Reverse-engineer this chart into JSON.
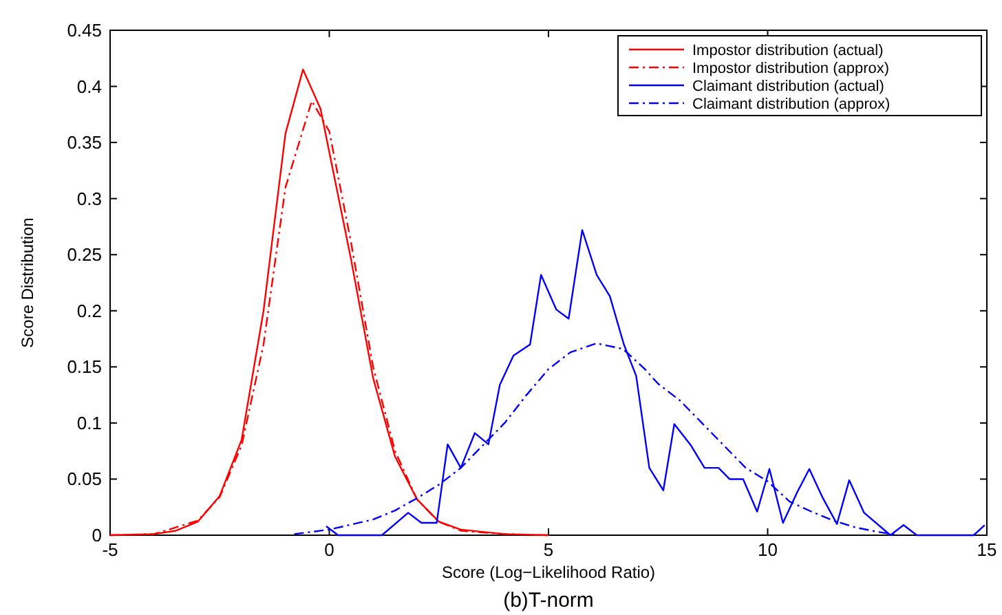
{
  "chart_data": {
    "type": "line",
    "title": "(b)T-norm",
    "xlabel": "Score (Log−Likelihood Ratio)",
    "ylabel": "Score Distribution",
    "xlim": [
      -5,
      15
    ],
    "ylim": [
      0,
      0.45
    ],
    "xticks": [
      -5,
      0,
      5,
      10,
      15
    ],
    "yticks": [
      0,
      0.05,
      0.1,
      0.15,
      0.2,
      0.25,
      0.3,
      0.35,
      0.4,
      0.45
    ],
    "grid": false,
    "legend": "top right",
    "marker": "none",
    "series": [
      {
        "name": "Impostor distribution (actual)",
        "color": "#ff0000",
        "line_style": "solid",
        "x": [
          -5,
          -4,
          -3.5,
          -3,
          -2.5,
          -2,
          -1.5,
          -1,
          -0.6,
          -0.2,
          0.5,
          1,
          1.5,
          2,
          2.5,
          3,
          4,
          5
        ],
        "values": [
          0,
          0.001,
          0.004,
          0.012,
          0.035,
          0.085,
          0.2,
          0.358,
          0.415,
          0.38,
          0.245,
          0.14,
          0.07,
          0.032,
          0.012,
          0.005,
          0.001,
          0
        ]
      },
      {
        "name": "Impostor distribution (approx)",
        "color": "#ff0000",
        "line_style": "dashdot",
        "x": [
          -5,
          -4,
          -3,
          -2.5,
          -2,
          -1.5,
          -1,
          -0.4,
          0,
          0.5,
          1,
          1.5,
          2,
          2.5,
          3,
          4,
          5
        ],
        "values": [
          0,
          0.001,
          0.013,
          0.034,
          0.08,
          0.17,
          0.31,
          0.387,
          0.36,
          0.26,
          0.15,
          0.075,
          0.032,
          0.012,
          0.004,
          0.001,
          0
        ]
      },
      {
        "name": "Claimant distribution (actual)",
        "color": "#0000ff",
        "line_style": "solid",
        "x": [
          -0.07,
          0.2,
          1.2,
          1.8,
          2.1,
          2.45,
          2.7,
          3,
          3.32,
          3.63,
          3.89,
          4.2,
          4.58,
          4.83,
          5.18,
          5.46,
          5.77,
          6.1,
          6.4,
          6.72,
          7,
          7.3,
          7.62,
          7.87,
          8.25,
          8.56,
          8.88,
          9.13,
          9.44,
          9.76,
          10.04,
          10.35,
          10.67,
          10.95,
          11.26,
          11.58,
          11.86,
          12.2,
          12.8,
          13.1,
          13.4,
          14.7,
          14.95
        ],
        "values": [
          0.008,
          0,
          0,
          0.02,
          0.011,
          0.011,
          0.081,
          0.06,
          0.091,
          0.081,
          0.134,
          0.16,
          0.17,
          0.232,
          0.201,
          0.193,
          0.272,
          0.232,
          0.213,
          0.17,
          0.142,
          0.06,
          0.04,
          0.099,
          0.08,
          0.06,
          0.06,
          0.05,
          0.05,
          0.021,
          0.059,
          0.011,
          0.038,
          0.059,
          0.033,
          0.01,
          0.049,
          0.02,
          0,
          0.009,
          0,
          0,
          0.009
        ]
      },
      {
        "name": "Claimant distribution (approx)",
        "color": "#0000ff",
        "line_style": "dashdot",
        "x": [
          -0.8,
          0,
          1,
          1.5,
          2,
          2.5,
          3,
          3.5,
          4,
          4.5,
          5,
          5.5,
          6.1,
          6.7,
          7.2,
          7.5,
          8,
          8.5,
          9,
          9.5,
          10,
          10.5,
          11,
          11.5,
          12,
          12.5,
          13
        ],
        "values": [
          0.001,
          0.005,
          0.014,
          0.022,
          0.033,
          0.045,
          0.06,
          0.08,
          0.1,
          0.125,
          0.148,
          0.163,
          0.171,
          0.166,
          0.148,
          0.135,
          0.12,
          0.1,
          0.08,
          0.06,
          0.048,
          0.03,
          0.021,
          0.013,
          0.007,
          0.003,
          0
        ]
      }
    ]
  }
}
